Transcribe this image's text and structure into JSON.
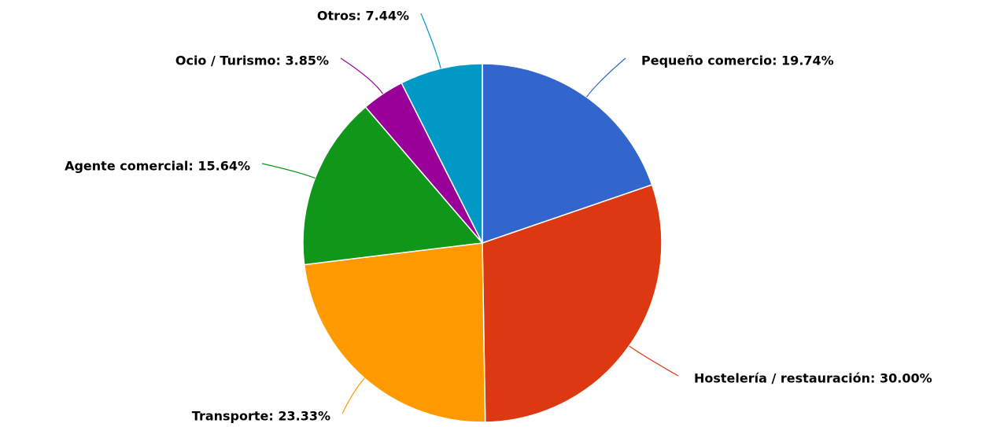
{
  "chart_data": {
    "type": "pie",
    "value_labels": [
      "Pequeño comercio: 19.74%",
      "Hostelería / restauración: 30.00%",
      "Transporte: 23.33%",
      "Agente comercial: 15.64%",
      "Ocio / Turismo: 3.85%",
      "Otros: 7.44%"
    ],
    "values": [
      19.74,
      30.0,
      23.33,
      15.64,
      3.85,
      7.44
    ],
    "colors": [
      "#3366cc",
      "#dc3912",
      "#ff9900",
      "#109618",
      "#990099",
      "#0099c6"
    ]
  }
}
